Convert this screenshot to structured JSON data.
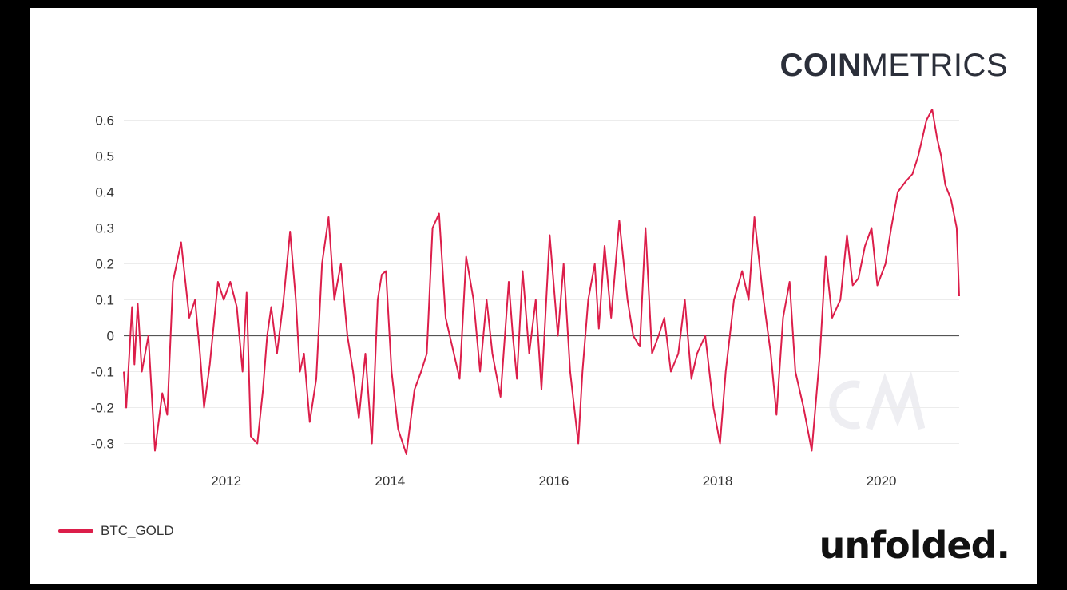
{
  "brand": {
    "strong": "COIN",
    "light": "METRICS"
  },
  "footer_logo": "unfolded.",
  "watermark_icon": "cm-watermark-icon",
  "colors": {
    "series": "#dc1e4a",
    "grid": "#ececec",
    "zero_line": "#555555",
    "axis_text": "#333333",
    "brand_text": "#2b2f3a",
    "watermark": "#eeeef2"
  },
  "chart_data": {
    "type": "line",
    "title": "",
    "xlabel": "",
    "ylabel": "",
    "xlim": [
      2010.75,
      2020.95
    ],
    "ylim": [
      -0.35,
      0.63
    ],
    "grid": true,
    "legend_position": "bottom-left",
    "x_ticks": [
      {
        "value": 2012,
        "label": "2012"
      },
      {
        "value": 2014,
        "label": "2014"
      },
      {
        "value": 2016,
        "label": "2016"
      },
      {
        "value": 2018,
        "label": "2018"
      },
      {
        "value": 2020,
        "label": "2020"
      }
    ],
    "y_ticks": [
      {
        "value": 0.6,
        "label": "0.6"
      },
      {
        "value": 0.5,
        "label": "0.5"
      },
      {
        "value": 0.4,
        "label": "0.4"
      },
      {
        "value": 0.3,
        "label": "0.3"
      },
      {
        "value": 0.2,
        "label": "0.2"
      },
      {
        "value": 0.1,
        "label": "0.1"
      },
      {
        "value": 0,
        "label": "0"
      },
      {
        "value": -0.1,
        "label": "-0.1"
      },
      {
        "value": -0.2,
        "label": "-0.2"
      },
      {
        "value": -0.3,
        "label": "-0.3"
      }
    ],
    "series": [
      {
        "name": "BTC_GOLD",
        "x": [
          2010.75,
          2010.78,
          2010.85,
          2010.88,
          2010.92,
          2010.97,
          2011.05,
          2011.13,
          2011.22,
          2011.28,
          2011.35,
          2011.45,
          2011.55,
          2011.62,
          2011.68,
          2011.73,
          2011.8,
          2011.9,
          2011.97,
          2012.05,
          2012.13,
          2012.2,
          2012.25,
          2012.3,
          2012.38,
          2012.45,
          2012.5,
          2012.55,
          2012.62,
          2012.7,
          2012.78,
          2012.85,
          2012.9,
          2012.95,
          2013.02,
          2013.1,
          2013.17,
          2013.25,
          2013.32,
          2013.4,
          2013.48,
          2013.55,
          2013.62,
          2013.7,
          2013.78,
          2013.85,
          2013.9,
          2013.95,
          2014.02,
          2014.1,
          2014.2,
          2014.3,
          2014.38,
          2014.45,
          2014.52,
          2014.6,
          2014.68,
          2014.75,
          2014.85,
          2014.93,
          2015.02,
          2015.1,
          2015.18,
          2015.25,
          2015.35,
          2015.45,
          2015.5,
          2015.55,
          2015.62,
          2015.7,
          2015.78,
          2015.85,
          2015.95,
          2016.05,
          2016.12,
          2016.2,
          2016.3,
          2016.35,
          2016.42,
          2016.5,
          2016.55,
          2016.62,
          2016.7,
          2016.8,
          2016.9,
          2016.97,
          2017.05,
          2017.12,
          2017.2,
          2017.28,
          2017.35,
          2017.43,
          2017.52,
          2017.6,
          2017.68,
          2017.75,
          2017.85,
          2017.95,
          2018.03,
          2018.1,
          2018.2,
          2018.3,
          2018.38,
          2018.45,
          2018.55,
          2018.65,
          2018.72,
          2018.8,
          2018.88,
          2018.95,
          2019.05,
          2019.15,
          2019.25,
          2019.32,
          2019.4,
          2019.5,
          2019.58,
          2019.65,
          2019.72,
          2019.8,
          2019.88,
          2019.95,
          2020.05,
          2020.12,
          2020.2,
          2020.3,
          2020.38,
          2020.45,
          2020.55,
          2020.62,
          2020.68,
          2020.73,
          2020.78,
          2020.85,
          2020.92,
          2020.95
        ],
        "values": [
          -0.1,
          -0.2,
          0.08,
          -0.08,
          0.09,
          -0.1,
          0.0,
          -0.32,
          -0.16,
          -0.22,
          0.15,
          0.26,
          0.05,
          0.1,
          -0.05,
          -0.2,
          -0.08,
          0.15,
          0.1,
          0.15,
          0.08,
          -0.1,
          0.12,
          -0.28,
          -0.3,
          -0.15,
          0.0,
          0.08,
          -0.05,
          0.1,
          0.29,
          0.1,
          -0.1,
          -0.05,
          -0.24,
          -0.12,
          0.2,
          0.33,
          0.1,
          0.2,
          0.0,
          -0.1,
          -0.23,
          -0.05,
          -0.3,
          0.1,
          0.17,
          0.18,
          -0.1,
          -0.26,
          -0.33,
          -0.15,
          -0.1,
          -0.05,
          0.3,
          0.34,
          0.05,
          -0.02,
          -0.12,
          0.22,
          0.1,
          -0.1,
          0.1,
          -0.05,
          -0.17,
          0.15,
          0.0,
          -0.12,
          0.18,
          -0.05,
          0.1,
          -0.15,
          0.28,
          0.0,
          0.2,
          -0.1,
          -0.3,
          -0.1,
          0.1,
          0.2,
          0.02,
          0.25,
          0.05,
          0.32,
          0.1,
          0.0,
          -0.03,
          0.3,
          -0.05,
          0.0,
          0.05,
          -0.1,
          -0.05,
          0.1,
          -0.12,
          -0.05,
          0.0,
          -0.2,
          -0.3,
          -0.1,
          0.1,
          0.18,
          0.1,
          0.33,
          0.12,
          -0.05,
          -0.22,
          0.05,
          0.15,
          -0.1,
          -0.2,
          -0.32,
          -0.05,
          0.22,
          0.05,
          0.1,
          0.28,
          0.14,
          0.16,
          0.25,
          0.3,
          0.14,
          0.2,
          0.3,
          0.4,
          0.43,
          0.45,
          0.5,
          0.6,
          0.63,
          0.55,
          0.5,
          0.42,
          0.38,
          0.3,
          0.11
        ]
      }
    ]
  }
}
